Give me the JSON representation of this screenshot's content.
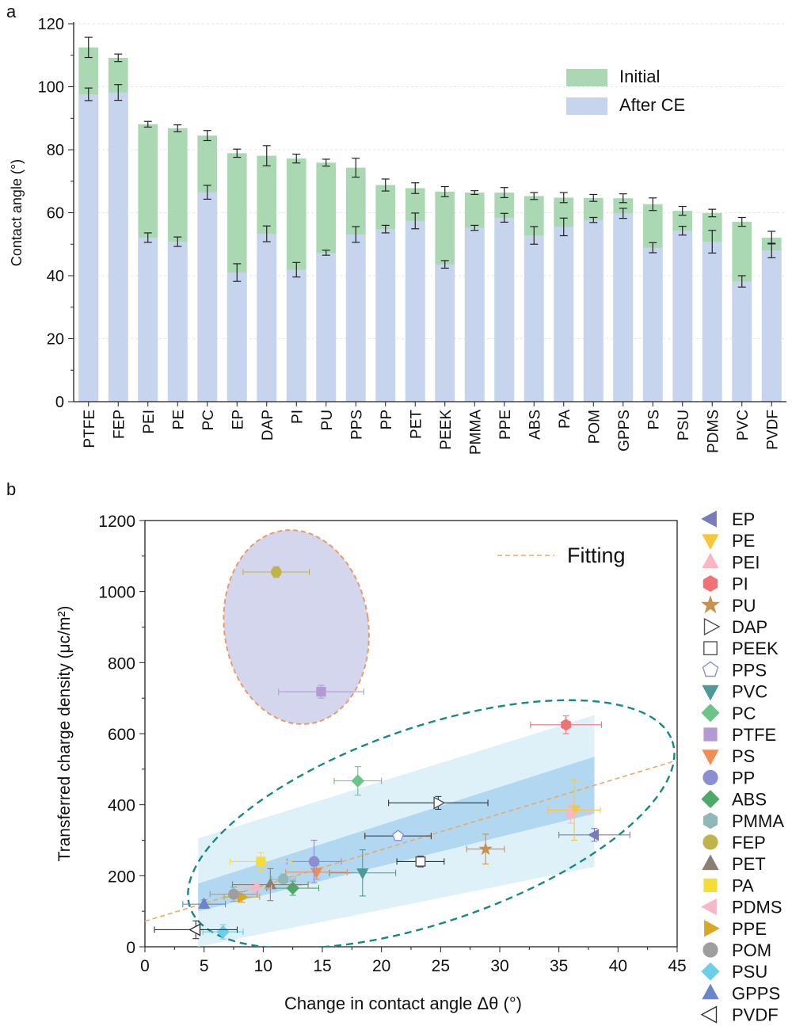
{
  "panel_a_letter": "a",
  "panel_b_letter": "b",
  "colors": {
    "initial": "#a9d8b3",
    "after_ce": "#c7d4ee",
    "fit_line": "#f0a860",
    "ellipse_teal": "#168a82",
    "ellipse_orange": "#ef9a63",
    "shade_outer": "#dff1f8",
    "shade_inner": "#a9d2f0",
    "ellipse_purple_fill": "#d3d6ec"
  },
  "chart_data": [
    {
      "type": "bar",
      "panel": "a",
      "ylabel": "Contact angle (°)",
      "ylim": [
        0,
        120
      ],
      "yticks": [
        0,
        20,
        40,
        60,
        80,
        100,
        120
      ],
      "grid": true,
      "legend_position": "top-right",
      "categories": [
        "PTFE",
        "FEP",
        "PEI",
        "PE",
        "PC",
        "EP",
        "DAP",
        "PI",
        "PU",
        "PPS",
        "PP",
        "PET",
        "PEEK",
        "PMMA",
        "PPE",
        "ABS",
        "PA",
        "POM",
        "GPPS",
        "PS",
        "PSU",
        "PDMS",
        "PVC",
        "PVDF"
      ],
      "series": [
        {
          "name": "Initial",
          "color": "#a9d8b3",
          "values": [
            112.5,
            109.2,
            88.1,
            86.8,
            84.5,
            78.9,
            78.1,
            77.2,
            75.9,
            74.3,
            68.8,
            67.8,
            66.7,
            66.4,
            66.4,
            65.3,
            64.8,
            64.7,
            64.6,
            62.7,
            60.6,
            59.9,
            57.1,
            52.1
          ],
          "errors": [
            3.2,
            1.2,
            0.9,
            1.1,
            1.6,
            1.3,
            3.2,
            1.4,
            1.1,
            3.0,
            1.9,
            1.7,
            1.6,
            0.6,
            1.6,
            1.1,
            1.6,
            1.1,
            1.4,
            2.0,
            1.4,
            1.2,
            1.4,
            2.0
          ]
        },
        {
          "name": "After CE",
          "color": "#c7d4ee",
          "values": [
            97.6,
            98.2,
            52.1,
            50.8,
            66.5,
            41.0,
            53.3,
            41.9,
            47.3,
            53.1,
            54.8,
            57.4,
            43.6,
            55.2,
            58.4,
            52.8,
            55.5,
            57.7,
            59.8,
            48.9,
            54.3,
            50.8,
            38.2,
            48.0
          ],
          "errors": [
            2.0,
            2.5,
            1.5,
            1.5,
            2.2,
            2.8,
            2.5,
            2.3,
            0.8,
            2.5,
            1.2,
            2.5,
            1.2,
            0.8,
            1.4,
            2.8,
            2.8,
            0.8,
            1.6,
            1.6,
            1.4,
            3.6,
            1.8,
            2.3
          ]
        }
      ]
    },
    {
      "type": "scatter",
      "panel": "b",
      "xlabel": "Change in contact angle Δθ (°)",
      "ylabel": "Transferred charge density (μc/m²)",
      "xlim": [
        0,
        45
      ],
      "ylim": [
        0,
        1200
      ],
      "xticks": [
        0,
        5,
        10,
        15,
        20,
        25,
        30,
        35,
        40,
        45
      ],
      "yticks": [
        0,
        200,
        400,
        600,
        800,
        1000,
        1200
      ],
      "fit_label": "Fitting",
      "fit_line": {
        "x": [
          0,
          45
        ],
        "y": [
          72,
          525
        ]
      },
      "legend_position": "right",
      "points": [
        {
          "name": "EP",
          "x": 38.0,
          "y": 315,
          "xerr": 3.0,
          "yerr": 18,
          "marker": "tri-left",
          "color": "#7b7bb8",
          "fill": "solid"
        },
        {
          "name": "PE",
          "x": 36.3,
          "y": 385,
          "xerr": 2.2,
          "yerr": 85,
          "marker": "tri-down",
          "color": "#f5c83c",
          "fill": "solid"
        },
        {
          "name": "PEI",
          "x": 36.0,
          "y": 378,
          "xerr": 1.6,
          "yerr": 30,
          "marker": "tri-up",
          "color": "#f7b8c4",
          "fill": "solid"
        },
        {
          "name": "PI",
          "x": 35.6,
          "y": 625,
          "xerr": 3.0,
          "yerr": 25,
          "marker": "hexagon",
          "color": "#ee7276",
          "fill": "solid"
        },
        {
          "name": "PU",
          "x": 28.8,
          "y": 275,
          "xerr": 1.6,
          "yerr": 42,
          "marker": "star",
          "color": "#c8914e",
          "fill": "solid"
        },
        {
          "name": "DAP",
          "x": 24.8,
          "y": 405,
          "xerr": 4.2,
          "yerr": 18,
          "marker": "tri-right",
          "color": "#555555",
          "fill": "open"
        },
        {
          "name": "PEEK",
          "x": 23.3,
          "y": 240,
          "xerr": 2.0,
          "yerr": 15,
          "marker": "square",
          "color": "#555555",
          "fill": "open"
        },
        {
          "name": "PPS",
          "x": 21.4,
          "y": 312,
          "xerr": 2.8,
          "yerr": 10,
          "marker": "pentagon",
          "color": "#8a8ee0",
          "fill": "open"
        },
        {
          "name": "PVC",
          "x": 18.4,
          "y": 208,
          "xerr": 2.8,
          "yerr": 65,
          "marker": "tri-down",
          "color": "#4e9a96",
          "fill": "solid"
        },
        {
          "name": "PC",
          "x": 18.0,
          "y": 467,
          "xerr": 2.0,
          "yerr": 40,
          "marker": "diamond",
          "color": "#6cc486",
          "fill": "solid"
        },
        {
          "name": "PTFE",
          "x": 14.9,
          "y": 718,
          "xerr": 3.6,
          "yerr": 18,
          "marker": "square",
          "color": "#b49ad2",
          "fill": "solid"
        },
        {
          "name": "PS",
          "x": 14.5,
          "y": 210,
          "xerr": 2.6,
          "yerr": 20,
          "marker": "tri-down",
          "color": "#f28e55",
          "fill": "solid"
        },
        {
          "name": "PP",
          "x": 14.3,
          "y": 240,
          "xerr": 2.3,
          "yerr": 60,
          "marker": "circle",
          "color": "#8c8ed2",
          "fill": "solid"
        },
        {
          "name": "ABS",
          "x": 12.5,
          "y": 165,
          "xerr": 2.2,
          "yerr": 20,
          "marker": "diamond",
          "color": "#4da86a",
          "fill": "solid"
        },
        {
          "name": "PMMA",
          "x": 11.7,
          "y": 190,
          "xerr": 1.0,
          "yerr": 15,
          "marker": "hexagon",
          "color": "#8fb8b8",
          "fill": "solid"
        },
        {
          "name": "FEP",
          "x": 11.1,
          "y": 1055,
          "xerr": 2.8,
          "yerr": 15,
          "marker": "circle",
          "color": "#c0b34a",
          "fill": "solid"
        },
        {
          "name": "PET",
          "x": 10.6,
          "y": 175,
          "xerr": 3.2,
          "yerr": 45,
          "marker": "tri-up",
          "color": "#8a7f72",
          "fill": "solid"
        },
        {
          "name": "PA",
          "x": 9.8,
          "y": 240,
          "xerr": 2.6,
          "yerr": 25,
          "marker": "square",
          "color": "#f5dc36",
          "fill": "solid"
        },
        {
          "name": "PDMS",
          "x": 9.3,
          "y": 165,
          "xerr": 1.4,
          "yerr": 15,
          "marker": "tri-left",
          "color": "#f5b8c6",
          "fill": "solid"
        },
        {
          "name": "PPE",
          "x": 8.2,
          "y": 140,
          "xerr": 1.5,
          "yerr": 15,
          "marker": "tri-right",
          "color": "#d9a722",
          "fill": "solid"
        },
        {
          "name": "POM",
          "x": 7.5,
          "y": 148,
          "xerr": 2.0,
          "yerr": 20,
          "marker": "circle",
          "color": "#9e9e9e",
          "fill": "solid"
        },
        {
          "name": "PSU",
          "x": 6.6,
          "y": 42,
          "xerr": 1.7,
          "yerr": 20,
          "marker": "diamond",
          "color": "#6ccfe8",
          "fill": "solid"
        },
        {
          "name": "GPPS",
          "x": 5.0,
          "y": 120,
          "xerr": 1.8,
          "yerr": 12,
          "marker": "tri-up",
          "color": "#6a86c8",
          "fill": "solid"
        },
        {
          "name": "PVDF",
          "x": 4.3,
          "y": 48,
          "xerr": 3.5,
          "yerr": 25,
          "marker": "tri-left",
          "color": "#333333",
          "fill": "open"
        }
      ]
    }
  ]
}
